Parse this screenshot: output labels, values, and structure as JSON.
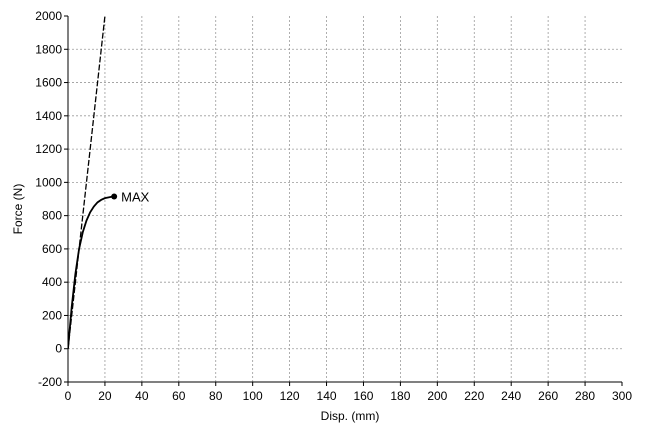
{
  "chart_data": {
    "type": "line",
    "title": "",
    "xlabel": "Disp. (mm)",
    "ylabel": "Force (N)",
    "xlim": [
      0,
      300
    ],
    "ylim": [
      -200,
      2000
    ],
    "xticks": [
      0,
      20,
      40,
      60,
      80,
      100,
      120,
      140,
      160,
      180,
      200,
      220,
      240,
      260,
      280,
      300
    ],
    "yticks": [
      -200,
      0,
      200,
      400,
      600,
      800,
      1000,
      1200,
      1400,
      1600,
      1800,
      2000
    ],
    "grid": true,
    "legend": "none",
    "colors": {
      "series": "#000000",
      "grid": "#9a9a9a",
      "axes": "#000000",
      "background": "#ffffff"
    },
    "series": [
      {
        "style": "solid",
        "x": [
          0,
          2,
          4,
          6,
          8,
          10,
          12,
          14,
          16,
          18,
          20,
          22,
          23,
          24,
          25
        ],
        "y": [
          0,
          250,
          450,
          600,
          700,
          770,
          820,
          855,
          880,
          895,
          905,
          910,
          912,
          914,
          915
        ]
      },
      {
        "style": "dashed",
        "x": [
          0,
          20
        ],
        "y": [
          0,
          2000
        ]
      }
    ],
    "annotations": [
      {
        "text": "MAX",
        "x": 25,
        "y": 915,
        "marker": "dot"
      }
    ]
  }
}
